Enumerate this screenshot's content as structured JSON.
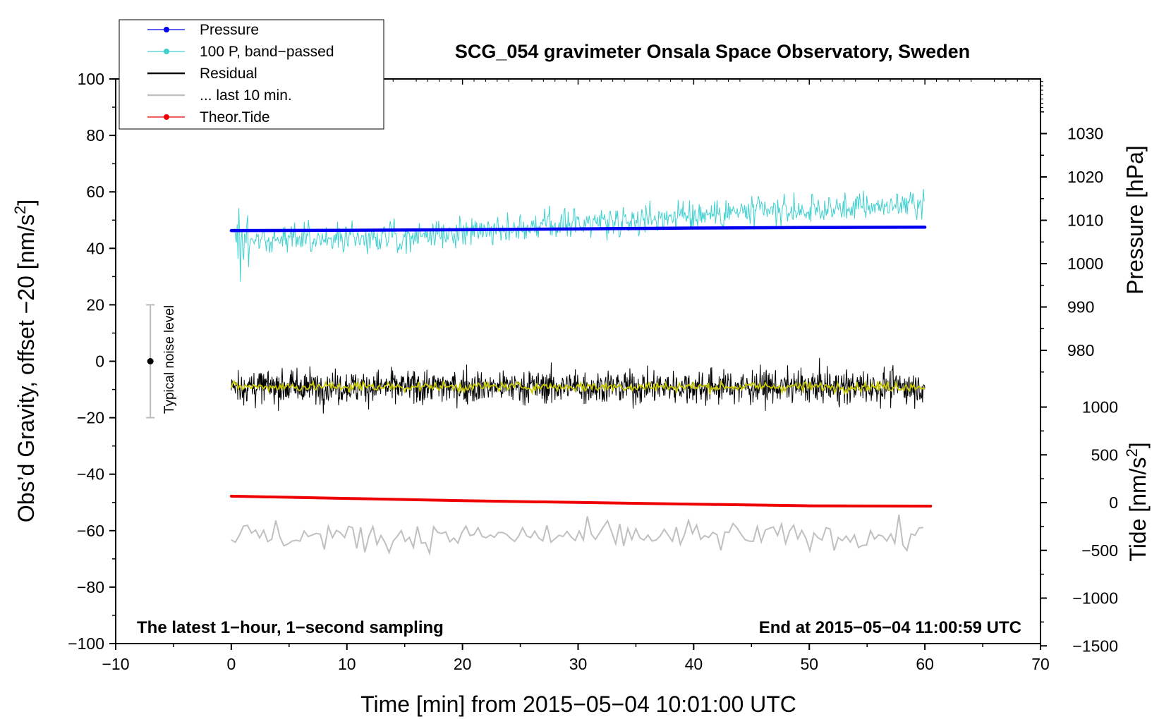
{
  "chart_data": {
    "type": "line",
    "title": "SCG_054 gravimeter Onsala Space Observatory, Sweden",
    "xlabel": "Time [min] from 2015−05−04 10:01:00 UTC",
    "ylabel_left": "Obs’d Gravity, offset −20 [nm/s",
    "ylabel_left_sup": "2",
    "ylabel_left_end": "]",
    "ylabel_right_pressure": "Pressure [hPa]",
    "ylabel_right_tide": "Tide [nm/s",
    "ylabel_right_tide_sup": "2",
    "ylabel_right_tide_end": "]",
    "xlim": [
      -10,
      70
    ],
    "ylim": [
      -100,
      100
    ],
    "pressure_axis": {
      "ticks": [
        980,
        990,
        1000,
        1010,
        1020,
        1030
      ],
      "labels": [
        "980",
        "990",
        "1000",
        "1010",
        "1020",
        "1030"
      ]
    },
    "tide_axis": {
      "ticks": [
        -1500,
        -1000,
        -500,
        0,
        500,
        1000
      ],
      "labels": [
        "−1500",
        "−1000",
        "−500",
        "0",
        "500",
        "1000"
      ]
    },
    "x_ticks": [
      -10,
      0,
      10,
      20,
      30,
      40,
      50,
      60,
      70
    ],
    "x_tick_labels": [
      "−10",
      "0",
      "10",
      "20",
      "30",
      "40",
      "50",
      "60",
      "70"
    ],
    "y_ticks": [
      -100,
      -80,
      -60,
      -40,
      -20,
      0,
      20,
      40,
      60,
      80,
      100
    ],
    "y_tick_labels": [
      "−100",
      "−80",
      "−60",
      "−40",
      "−20",
      "0",
      "20",
      "40",
      "60",
      "80",
      "100"
    ],
    "series": [
      {
        "name": "Pressure",
        "color": "#0000ee",
        "x": [
          0,
          10,
          20,
          30,
          40,
          50,
          60
        ],
        "y": [
          46.3,
          46.4,
          46.6,
          46.9,
          47.2,
          47.4,
          47.5
        ]
      },
      {
        "name": "100 P, band−passed",
        "color": "#40d0d0",
        "x": [
          0,
          10,
          20,
          30,
          40,
          50,
          60
        ],
        "y": [
          43,
          43,
          46,
          49,
          52,
          53.5,
          56
        ]
      },
      {
        "name": "Residual",
        "color": "#000000",
        "x": [
          0,
          10,
          20,
          30,
          40,
          50,
          60
        ],
        "y": [
          -9,
          -9,
          -9,
          -9,
          -9,
          -9,
          -9
        ]
      },
      {
        "name": "... last 10 min.",
        "color": "#c0c0c0",
        "x": [
          0,
          10,
          20,
          30,
          40,
          50,
          60
        ],
        "y": [
          -62,
          -62,
          -62,
          -62,
          -62,
          -62,
          -62
        ]
      },
      {
        "name": "Theor.Tide",
        "color": "#ee0000",
        "x": [
          0,
          10,
          20,
          30,
          40,
          50,
          60.5
        ],
        "y": [
          -47.8,
          -48.6,
          -49.4,
          -50.0,
          -50.6,
          -51.2,
          -51.3
        ]
      },
      {
        "name": "smoothed residual",
        "color": "#c8c800",
        "x": [
          0,
          10,
          20,
          30,
          40,
          50,
          60
        ],
        "y": [
          -9,
          -9,
          -9,
          -9,
          -9,
          -9,
          -9
        ]
      }
    ],
    "noise_bar": {
      "x": -7,
      "y": 0,
      "low": -20,
      "high": 20,
      "label": "Typical noise level"
    },
    "annotation_left": "The latest 1−hour, 1−second sampling",
    "annotation_right": "End at 2015−05−04 11:00:59 UTC",
    "legend": [
      {
        "label": "Pressure",
        "color": "#0000ee",
        "marker": true
      },
      {
        "label": "100 P, band−passed",
        "color": "#40d0d0",
        "marker": true
      },
      {
        "label": "Residual",
        "color": "#000000",
        "marker": false
      },
      {
        "label": "... last 10 min.",
        "color": "#c0c0c0",
        "marker": false
      },
      {
        "label": "Theor.Tide",
        "color": "#ee0000",
        "marker": true
      }
    ]
  }
}
